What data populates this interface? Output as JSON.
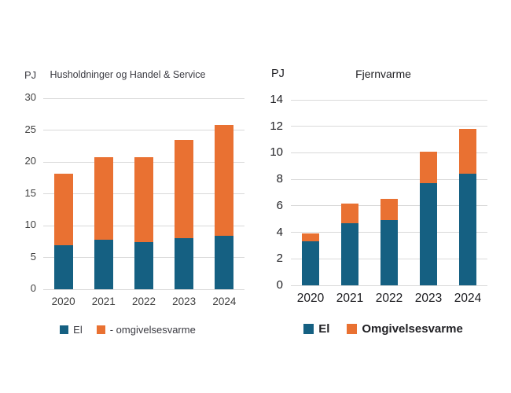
{
  "page": {
    "background": "#ffffff"
  },
  "chart_data": [
    {
      "type": "bar",
      "stacked": true,
      "title": "Husholdninger og Handel & Service",
      "ylabel": "PJ",
      "xlabel": "",
      "categories": [
        "2020",
        "2021",
        "2022",
        "2023",
        "2024"
      ],
      "series": [
        {
          "name": "El",
          "color": "#156082",
          "values": [
            6.9,
            7.8,
            7.4,
            8.0,
            8.4
          ]
        },
        {
          "name": "- omgivelsesvarme",
          "color": "#E97132",
          "values": [
            11.3,
            13.0,
            13.4,
            15.4,
            17.4
          ]
        }
      ],
      "totals": [
        18.2,
        20.8,
        20.8,
        23.4,
        25.8
      ],
      "ylim": [
        0,
        30
      ],
      "ytick_step": 5,
      "grid": true,
      "legend_position": "bottom"
    },
    {
      "type": "bar",
      "stacked": true,
      "title": "Fjernvarme",
      "ylabel": "PJ",
      "xlabel": "",
      "categories": [
        "2020",
        "2021",
        "2022",
        "2023",
        "2024"
      ],
      "series": [
        {
          "name": "El",
          "color": "#156082",
          "values": [
            3.3,
            4.7,
            4.9,
            7.7,
            8.4
          ]
        },
        {
          "name": "Omgivelsesvarme",
          "color": "#E97132",
          "values": [
            0.6,
            1.5,
            1.6,
            2.4,
            3.4
          ]
        }
      ],
      "totals": [
        3.9,
        6.2,
        6.5,
        10.1,
        11.8
      ],
      "ylim": [
        0,
        14
      ],
      "ytick_step": 2,
      "grid": true,
      "legend_position": "bottom"
    }
  ]
}
